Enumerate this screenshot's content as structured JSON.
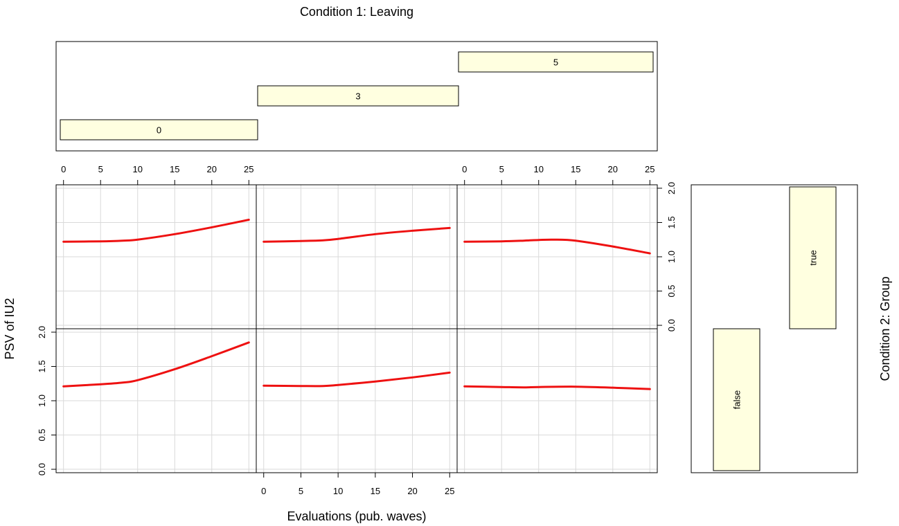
{
  "chart_data": {
    "type": "line",
    "title": "Condition 1: Leaving",
    "xlabel": "Evaluations (pub. waves)",
    "ylabel": "PSV of IU2",
    "side_label": "Condition 2: Group",
    "xlim": [
      -1,
      26
    ],
    "ylim": [
      -0.05,
      2.05
    ],
    "x_ticks": [
      0,
      5,
      10,
      15,
      20,
      25
    ],
    "y_ticks": [
      0.0,
      0.5,
      1.0,
      1.5,
      2.0
    ],
    "y_tick_labels": [
      "0.0",
      "0.5",
      "1.0",
      "1.5",
      "2.0"
    ],
    "grid": true,
    "line_color": "#ee1111",
    "box_fill": "#ffffe0",
    "leaving_levels": [
      {
        "label": "0",
        "col": 0
      },
      {
        "label": "3",
        "col": 1
      },
      {
        "label": "5",
        "col": 2
      }
    ],
    "group_levels": [
      {
        "label": "false",
        "row": 1
      },
      {
        "label": "true",
        "row": 0
      }
    ],
    "panels": [
      {
        "row": 0,
        "col": 0,
        "leaving": "0",
        "group": "true",
        "x": [
          0,
          5,
          8,
          10,
          15,
          20,
          25
        ],
        "y": [
          1.22,
          1.225,
          1.235,
          1.25,
          1.33,
          1.43,
          1.54
        ]
      },
      {
        "row": 0,
        "col": 1,
        "leaving": "3",
        "group": "true",
        "x": [
          0,
          5,
          8,
          10,
          15,
          20,
          25
        ],
        "y": [
          1.22,
          1.23,
          1.24,
          1.26,
          1.33,
          1.38,
          1.42
        ]
      },
      {
        "row": 0,
        "col": 2,
        "leaving": "5",
        "group": "true",
        "x": [
          0,
          5,
          8,
          10,
          12,
          15,
          20,
          25
        ],
        "y": [
          1.22,
          1.225,
          1.235,
          1.245,
          1.25,
          1.235,
          1.15,
          1.05
        ]
      },
      {
        "row": 1,
        "col": 0,
        "leaving": "0",
        "group": "false",
        "x": [
          0,
          5,
          8,
          10,
          15,
          20,
          25
        ],
        "y": [
          1.21,
          1.24,
          1.265,
          1.3,
          1.46,
          1.65,
          1.85
        ]
      },
      {
        "row": 1,
        "col": 1,
        "leaving": "3",
        "group": "false",
        "x": [
          0,
          5,
          8,
          10,
          15,
          20,
          25
        ],
        "y": [
          1.22,
          1.215,
          1.215,
          1.23,
          1.28,
          1.34,
          1.41
        ]
      },
      {
        "row": 1,
        "col": 2,
        "leaving": "5",
        "group": "false",
        "x": [
          0,
          5,
          8,
          10,
          15,
          20,
          25
        ],
        "y": [
          1.21,
          1.2,
          1.195,
          1.2,
          1.205,
          1.19,
          1.17
        ]
      }
    ]
  }
}
